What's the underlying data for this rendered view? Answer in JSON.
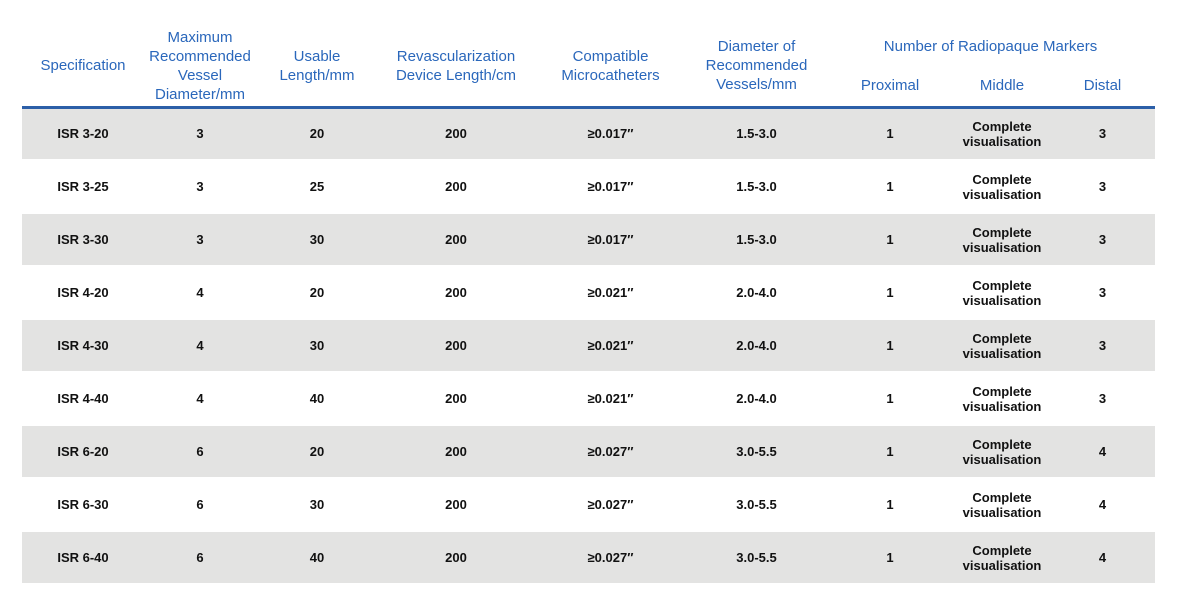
{
  "colors": {
    "header_text": "#2a67bb",
    "header_rule": "#2c5fa8",
    "row_alt": "#e3e3e2",
    "cell_text": "#111111"
  },
  "table": {
    "headers": {
      "specification": "Specification",
      "max_vessel_diameter": "Maximum\nRecommended\nVessel\nDiameter/mm",
      "usable_length": "Usable\nLength/mm",
      "device_length": "Revascularization\nDevice Length/cm",
      "compatible_microcatheters": "Compatible\nMicrocatheters",
      "recommended_vessels": "Diameter of\nRecommended\nVessels/mm",
      "markers_group": "Number of Radiopaque Markers",
      "markers_proximal": "Proximal",
      "markers_middle": "Middle",
      "markers_distal": "Distal"
    },
    "rows": [
      [
        "ISR 3-20",
        "3",
        "20",
        "200",
        "≥0.017″",
        "1.5-3.0",
        "1",
        "Complete\nvisualisation",
        "3"
      ],
      [
        "ISR 3-25",
        "3",
        "25",
        "200",
        "≥0.017″",
        "1.5-3.0",
        "1",
        "Complete\nvisualisation",
        "3"
      ],
      [
        "ISR 3-30",
        "3",
        "30",
        "200",
        "≥0.017″",
        "1.5-3.0",
        "1",
        "Complete\nvisualisation",
        "3"
      ],
      [
        "ISR 4-20",
        "4",
        "20",
        "200",
        "≥0.021″",
        "2.0-4.0",
        "1",
        "Complete\nvisualisation",
        "3"
      ],
      [
        "ISR 4-30",
        "4",
        "30",
        "200",
        "≥0.021″",
        "2.0-4.0",
        "1",
        "Complete\nvisualisation",
        "3"
      ],
      [
        "ISR 4-40",
        "4",
        "40",
        "200",
        "≥0.021″",
        "2.0-4.0",
        "1",
        "Complete\nvisualisation",
        "3"
      ],
      [
        "ISR 6-20",
        "6",
        "20",
        "200",
        "≥0.027″",
        "3.0-5.5",
        "1",
        "Complete\nvisualisation",
        "4"
      ],
      [
        "ISR 6-30",
        "6",
        "30",
        "200",
        "≥0.027″",
        "3.0-5.5",
        "1",
        "Complete\nvisualisation",
        "4"
      ],
      [
        "ISR 6-40",
        "6",
        "40",
        "200",
        "≥0.027″",
        "3.0-5.5",
        "1",
        "Complete\nvisualisation",
        "4"
      ]
    ]
  }
}
